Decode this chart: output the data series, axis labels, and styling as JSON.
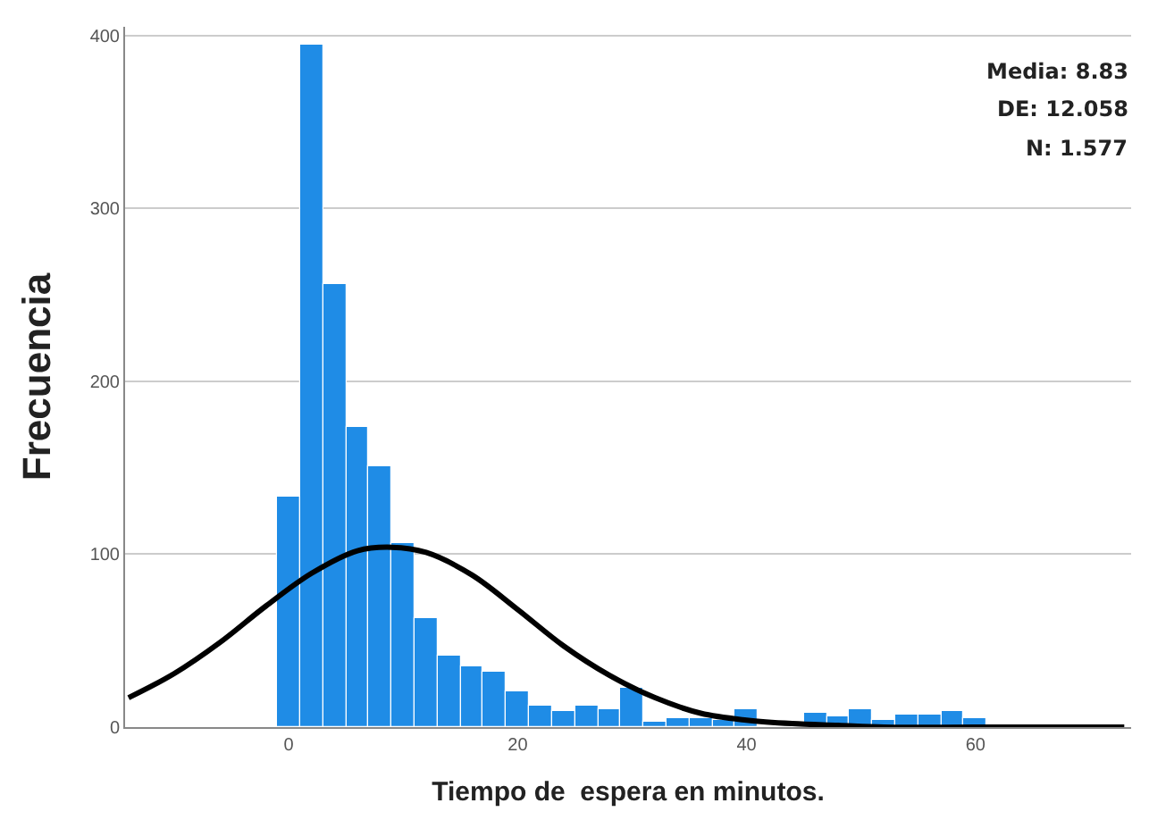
{
  "chart_data": {
    "type": "histogram",
    "xlabel": "Tiempo de  espera en minutos.",
    "ylabel": "Frecuencia",
    "bins": [
      -1,
      1,
      3,
      5,
      7,
      9,
      11,
      13,
      15,
      17,
      19,
      21,
      23,
      25,
      27,
      29,
      31,
      33,
      35,
      37,
      39,
      41,
      43,
      45,
      47,
      49,
      51,
      53,
      55,
      57,
      59,
      61
    ],
    "values": [
      133,
      395,
      256,
      174,
      151,
      106,
      63,
      41,
      35,
      32,
      21,
      12,
      9,
      12,
      10,
      23,
      3,
      5,
      5,
      4,
      10,
      null,
      null,
      8,
      6,
      10,
      4,
      7,
      7,
      9,
      5
    ],
    "color": "#1f8ce6",
    "series": [
      {
        "type": "line",
        "color": "#000000",
        "x": [
          -14,
          -10,
          -6,
          -2,
          2,
          6,
          9,
          12,
          16,
          20,
          24,
          28,
          32,
          36,
          40,
          44,
          48,
          52,
          60,
          73
        ],
        "values": [
          17,
          31,
          49,
          70,
          89,
          102,
          104,
          101,
          88,
          68,
          47,
          30,
          17,
          8,
          4,
          2,
          1,
          0,
          0,
          0
        ]
      }
    ],
    "xlim": [
      -14.3,
      73.6
    ],
    "ylim": [
      0,
      405
    ],
    "xticks": [
      0,
      20,
      40,
      60
    ],
    "yticks": [
      0,
      100,
      200,
      300,
      400
    ],
    "grid": "y",
    "annotations": [
      "Media: 8.83",
      "DE: 12.058",
      "N: 1.577"
    ]
  }
}
